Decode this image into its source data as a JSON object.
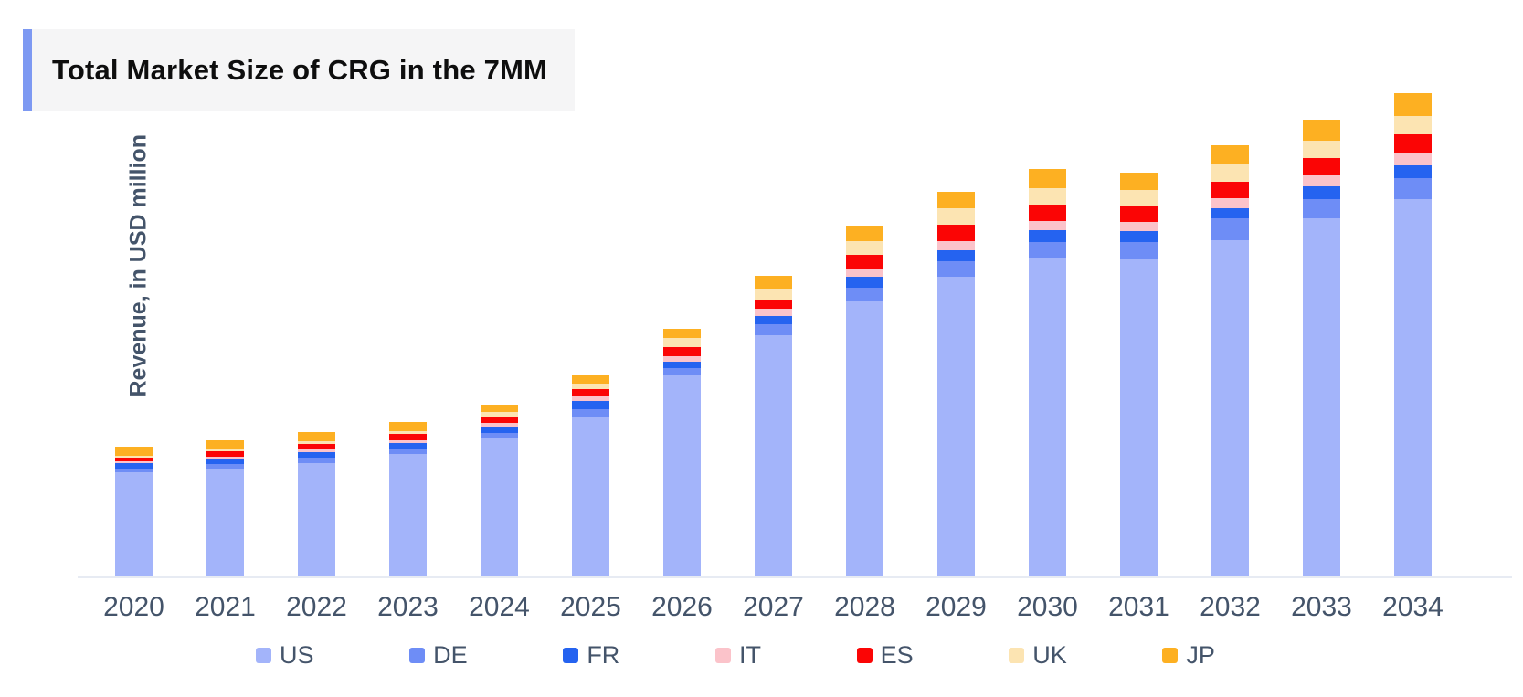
{
  "title": "Total Market Size of CRG in the 7MM",
  "y_axis_label": "Revenue, in USD million",
  "colors": {
    "title_accent": "#7d99f2",
    "title_background": "#f5f5f6",
    "axis_text": "#44546a",
    "baseline": "#e7ebf3"
  },
  "chart_data": {
    "type": "bar",
    "stacked": true,
    "title": "Total Market Size of CRG in the 7MM",
    "xlabel": "",
    "ylabel": "Revenue, in USD million",
    "grid": false,
    "y_axis_tick_labels_visible": false,
    "legend_position": "bottom",
    "values_estimated_from_pixels": true,
    "categories": [
      "2020",
      "2021",
      "2022",
      "2023",
      "2024",
      "2025",
      "2026",
      "2027",
      "2028",
      "2029",
      "2030",
      "2031",
      "2032",
      "2033",
      "2034"
    ],
    "series": [
      {
        "name": "US",
        "color": "#a3b4fa",
        "values": [
          113,
          117,
          123,
          133,
          150,
          174,
          219,
          263,
          300,
          327,
          348,
          347,
          367,
          391,
          412
        ]
      },
      {
        "name": "DE",
        "color": "#6e8df6",
        "values": [
          4,
          5,
          6,
          6,
          6,
          8,
          8,
          12,
          15,
          17,
          17,
          18,
          24,
          21,
          23
        ]
      },
      {
        "name": "FR",
        "color": "#2563f0",
        "values": [
          6,
          6,
          6,
          6,
          7,
          9,
          7,
          9,
          12,
          12,
          13,
          12,
          11,
          14,
          14
        ]
      },
      {
        "name": "IT",
        "color": "#fbc3ca",
        "values": [
          2,
          2,
          3,
          3,
          4,
          6,
          6,
          8,
          9,
          10,
          10,
          10,
          11,
          12,
          14
        ]
      },
      {
        "name": "ES",
        "color": "#fb0505",
        "values": [
          4,
          6,
          6,
          7,
          6,
          7,
          10,
          10,
          15,
          18,
          18,
          17,
          18,
          19,
          20
        ]
      },
      {
        "name": "UK",
        "color": "#fce4b2",
        "values": [
          2,
          3,
          3,
          3,
          6,
          6,
          10,
          12,
          15,
          18,
          18,
          18,
          19,
          19,
          20
        ]
      },
      {
        "name": "JP",
        "color": "#fdb022",
        "values": [
          10,
          9,
          10,
          10,
          8,
          10,
          10,
          14,
          17,
          18,
          21,
          19,
          21,
          23,
          25
        ]
      }
    ]
  }
}
